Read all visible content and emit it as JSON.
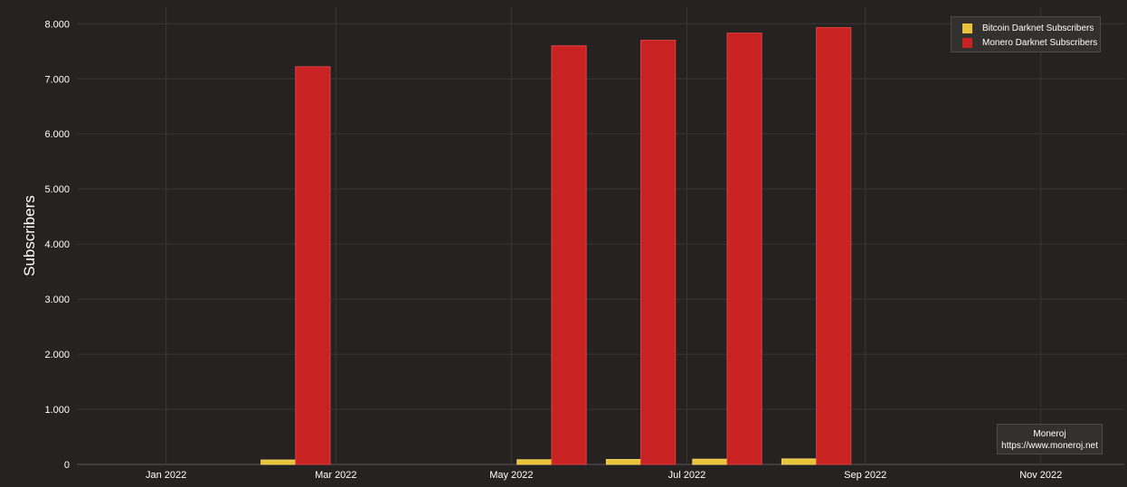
{
  "chart_data": {
    "type": "bar",
    "title": "",
    "xlabel": "",
    "ylabel": "Subscribers",
    "ylim": [
      0,
      8300
    ],
    "yticks": [
      0,
      1000,
      2000,
      3000,
      4000,
      5000,
      6000,
      7000,
      8000
    ],
    "ytick_labels": [
      "0",
      "1.000",
      "2.000",
      "3.000",
      "4.000",
      "5.000",
      "6.000",
      "7.000",
      "8.000"
    ],
    "xlim": [
      "2021-12-01",
      "2022-11-30"
    ],
    "xticks": [
      "2022-01-01",
      "2022-03-01",
      "2022-05-01",
      "2022-07-01",
      "2022-09-01",
      "2022-11-01"
    ],
    "xtick_labels": [
      "Jan 2022",
      "Mar 2022",
      "May 2022",
      "Jul 2022",
      "Sep 2022",
      "Nov 2022"
    ],
    "categories": [
      "2022-02-15",
      "2022-05-15",
      "2022-06-15",
      "2022-07-15",
      "2022-08-15"
    ],
    "series": [
      {
        "name": "Bitcoin Darknet Subscribers",
        "color": "#e8c43a",
        "values": [
          80,
          85,
          90,
          95,
          100
        ]
      },
      {
        "name": "Monero Darknet Subscribers",
        "color": "#c92223",
        "values": [
          7220,
          7600,
          7700,
          7830,
          7930
        ]
      }
    ],
    "grid": true,
    "legend_position": "top-right"
  },
  "watermark": {
    "line1": "Moneroj",
    "line2": "https://www.moneroj.net"
  }
}
